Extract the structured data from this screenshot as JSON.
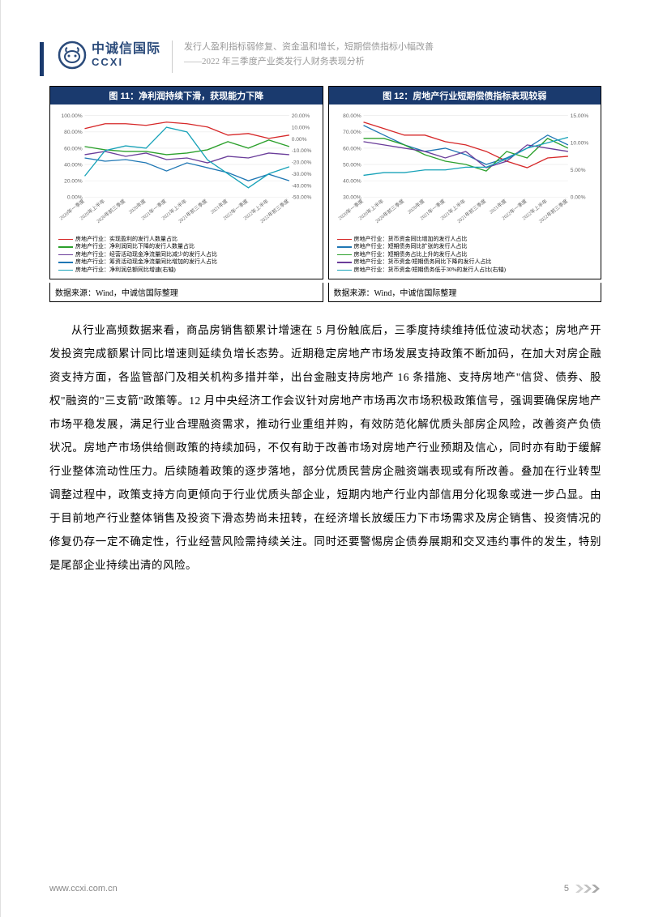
{
  "header": {
    "logo_cn": "中诚信国际",
    "logo_en": "CCXI",
    "line1": "发行人盈利指标弱修复、资金温和增长，短期偿债指标小幅改善",
    "line2": "——2022 年三季度产业类发行人财务表现分析"
  },
  "chart11": {
    "title": "图 11：净利润持续下滑，获现能力下降",
    "source": "数据来源：Wind，中诚信国际整理",
    "x_labels": [
      "2020年一季度",
      "2020年上半年",
      "2020年前三季度",
      "2020年度",
      "2021年一季度",
      "2021年上半年",
      "2021年前三季度",
      "2021年度",
      "2022年一季度",
      "2022年上半年",
      "2022年前三季度"
    ],
    "y1_ticks": [
      "0.00%",
      "20.00%",
      "40.00%",
      "60.00%",
      "80.00%",
      "100.00%"
    ],
    "y2_ticks": [
      "-50.00%",
      "-40.00%",
      "-30.00%",
      "-20.00%",
      "-10.00%",
      "0.00%",
      "10.00%",
      "20.00%"
    ],
    "series": [
      {
        "name": "房地产行业：实现盈利的发行人数量占比",
        "color": "#d62728",
        "values": [
          84,
          90,
          90,
          88,
          92,
          90,
          86,
          76,
          78,
          72,
          76
        ]
      },
      {
        "name": "房地产行业：净利润同比下降的发行人数量占比",
        "color": "#2ca02c",
        "values": [
          62,
          58,
          56,
          56,
          52,
          54,
          58,
          68,
          60,
          70,
          62
        ]
      },
      {
        "name": "房地产行业：经营活动现金净流量同比减少的发行人占比",
        "color": "#6a3d9a",
        "values": [
          52,
          56,
          50,
          54,
          46,
          48,
          42,
          50,
          48,
          54,
          52
        ]
      },
      {
        "name": "房地产行业：筹资活动现金净流量同比增加的发行人占比",
        "color": "#1f77b4",
        "values": [
          48,
          44,
          46,
          42,
          32,
          42,
          36,
          30,
          20,
          28,
          20
        ]
      },
      {
        "name": "房地产行业：净利润总额同比增速(右轴)",
        "color": "#17a2b8",
        "axis": "right",
        "values": [
          -32,
          -10,
          -6,
          -8,
          10,
          6,
          -18,
          -30,
          -42,
          -30,
          -24
        ]
      }
    ]
  },
  "chart12": {
    "title": "图 12：房地产行业短期偿债指标表现较弱",
    "source": "数据来源：Wind，中诚信国际整理",
    "x_labels": [
      "2020年一季度",
      "2020年上半年",
      "2020年前三季度",
      "2020年度",
      "2021年一季度",
      "2021年上半年",
      "2021年前三季度",
      "2021年度",
      "2022年一季度",
      "2022年上半年",
      "2022年前三季度"
    ],
    "y1_ticks": [
      "30.00%",
      "40.00%",
      "50.00%",
      "60.00%",
      "70.00%",
      "80.00%"
    ],
    "y2_ticks": [
      "0.00%",
      "5.00%",
      "10.00%",
      "15.00%"
    ],
    "series": [
      {
        "name": "房地产行业：货币资金同比增加的发行人占比",
        "color": "#d62728",
        "values": [
          76,
          72,
          68,
          68,
          64,
          62,
          58,
          52,
          48,
          54,
          55
        ]
      },
      {
        "name": "房地产行业：短期债务同比扩张的发行人占比",
        "color": "#1f77b4",
        "values": [
          74,
          68,
          62,
          58,
          60,
          56,
          50,
          54,
          60,
          68,
          62
        ]
      },
      {
        "name": "房地产行业：短期债务占比上升的发行人占比",
        "color": "#2ca02c",
        "values": [
          66,
          66,
          62,
          56,
          52,
          50,
          46,
          58,
          54,
          66,
          60
        ]
      },
      {
        "name": "房地产行业：货币资金/短期债务同比下降的发行人占比",
        "color": "#6a3d9a",
        "values": [
          64,
          62,
          60,
          58,
          54,
          58,
          48,
          52,
          62,
          60,
          58
        ]
      },
      {
        "name": "房地产行业：货币资金/短期债务低于30%的发行人占比(右轴)",
        "color": "#17a2b8",
        "axis": "right",
        "values": [
          4,
          4.5,
          4.5,
          5,
          5,
          5.5,
          5.5,
          7,
          9,
          10,
          11
        ]
      }
    ]
  },
  "body_text": "从行业高频数据来看，商品房销售额累计增速在 5 月份触底后，三季度持续维持低位波动状态；房地产开发投资完成额累计同比增速则延续负增长态势。近期稳定房地产市场发展支持政策不断加码，在加大对房企融资支持方面，各监管部门及相关机构多措并举，出台金融支持房地产 16 条措施、支持房地产\"信贷、债券、股权\"融资的\"三支箭\"政策等。12 月中央经济工作会议针对房地产市场再次市场积极政策信号，强调要确保房地产市场平稳发展，满足行业合理融资需求，推动行业重组并购，有效防范化解优质头部房企风险，改善资产负债状况。房地产市场供给侧政策的持续加码，不仅有助于改善市场对房地产行业预期及信心，同时亦有助于缓解行业整体流动性压力。后续随着政策的逐步落地，部分优质民营房企融资端表现或有所改善。叠加在行业转型调整过程中，政策支持方向更倾向于行业优质头部企业，短期内地产行业内部信用分化现象或进一步凸显。由于目前地产行业整体销售及投资下滑态势尚未扭转，在经济增长放缓压力下市场需求及房企销售、投资情况的修复仍存一定不确定性，行业经营风险需持续关注。同时还要警惕房企债券展期和交叉违约事件的发生，特别是尾部企业持续出清的风险。",
  "footer": {
    "url": "www.ccxi.com.cn",
    "page": "5"
  },
  "colors": {
    "brand_blue": "#1a3a6e",
    "header_gray": "#999999",
    "chevron": "#cccccc"
  }
}
